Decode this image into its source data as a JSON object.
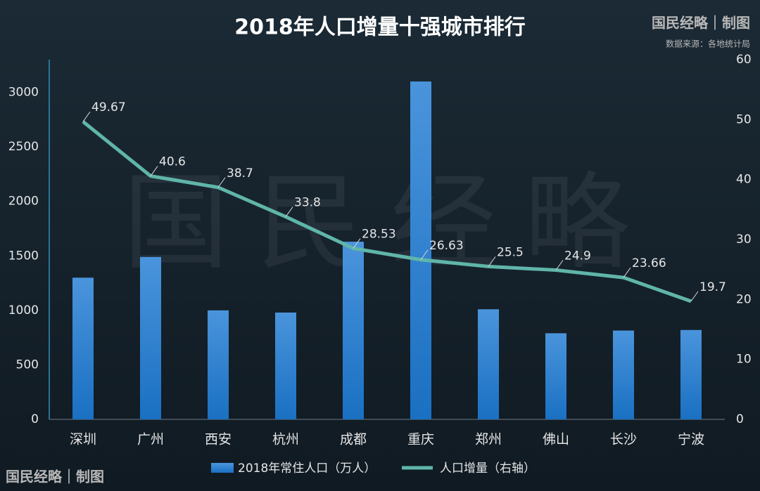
{
  "chart_data": {
    "type": "bar",
    "title": "2018年人口增量十强城市排行",
    "credit": "国民经略｜制图",
    "source": "数据来源：各地统计局",
    "watermark": "国民经略",
    "categories": [
      "深圳",
      "广州",
      "西安",
      "杭州",
      "成都",
      "重庆",
      "郑州",
      "佛山",
      "长沙",
      "宁波"
    ],
    "series": [
      {
        "name": "2018年常住人口（万人）",
        "type": "bar",
        "color": "#2f86d6",
        "values": [
          1300,
          1490,
          1000,
          980,
          1630,
          3100,
          1010,
          790,
          815,
          820
        ]
      },
      {
        "name": "人口增量（右轴）",
        "type": "line",
        "axis": "y2",
        "color": "#5fb5a9",
        "values": [
          49.67,
          40.6,
          38.7,
          33.8,
          28.53,
          26.63,
          25.5,
          24.9,
          23.66,
          19.7
        ]
      }
    ],
    "ylim": [
      0,
      3300
    ],
    "yticks": [
      0,
      500,
      1000,
      1500,
      2000,
      2500,
      3000
    ],
    "y2lim": [
      0,
      60
    ],
    "y2ticks": [
      0,
      10,
      20,
      30,
      40,
      50,
      60
    ]
  }
}
